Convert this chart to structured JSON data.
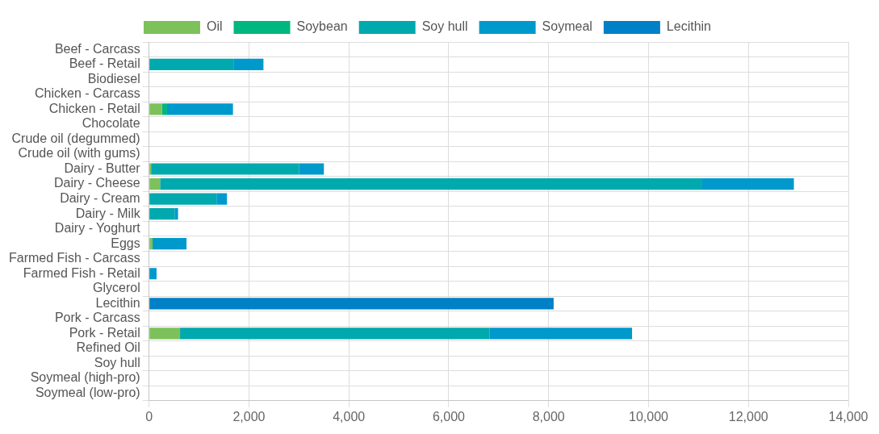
{
  "chart_data": {
    "type": "bar",
    "orientation": "horizontal",
    "stacked": true,
    "legend": "top",
    "grid": true,
    "categories": [
      "Beef - Carcass",
      "Beef - Retail",
      "Biodiesel",
      "Chicken - Carcass",
      "Chicken - Retail",
      "Chocolate",
      "Crude oil (degummed)",
      "Crude oil (with gums)",
      "Dairy - Butter",
      "Dairy - Cheese",
      "Dairy - Cream",
      "Dairy - Milk",
      "Dairy - Yoghurt",
      "Eggs",
      "Farmed Fish - Carcass",
      "Farmed Fish - Retail",
      "Glycerol",
      "Lecithin",
      "Pork - Carcass",
      "Pork - Retail",
      "Refined Oil",
      "Soy hull",
      "Soymeal (high-pro)",
      "Soymeal (low-pro)"
    ],
    "xlim": [
      0,
      14000
    ],
    "xticks": [
      {
        "value": 0,
        "label": "0"
      },
      {
        "value": 2000,
        "label": "2,000"
      },
      {
        "value": 4000,
        "label": "4,000"
      },
      {
        "value": 6000,
        "label": "6,000"
      },
      {
        "value": 8000,
        "label": "8,000"
      },
      {
        "value": 10000,
        "label": "10,000"
      },
      {
        "value": 12000,
        "label": "12,000"
      },
      {
        "value": 14000,
        "label": "14,000"
      }
    ],
    "series": [
      {
        "name": "Oil",
        "color": "#7dc15a",
        "values": [
          null,
          null,
          null,
          null,
          260,
          null,
          null,
          null,
          40,
          220,
          null,
          null,
          null,
          70,
          null,
          null,
          null,
          null,
          null,
          620,
          null,
          null,
          null,
          null
        ]
      },
      {
        "name": "Soybean",
        "color": "#00b77f",
        "values": [
          null,
          null,
          null,
          null,
          100,
          null,
          null,
          null,
          null,
          null,
          null,
          null,
          null,
          null,
          null,
          null,
          null,
          null,
          null,
          null,
          null,
          null,
          null,
          null
        ]
      },
      {
        "name": "Soy hull",
        "color": "#00a9ad",
        "values": [
          null,
          1700,
          null,
          null,
          null,
          null,
          null,
          null,
          2960,
          10840,
          1350,
          510,
          null,
          null,
          null,
          null,
          null,
          null,
          null,
          6200,
          null,
          null,
          null,
          null
        ]
      },
      {
        "name": "Soymeal",
        "color": "#0099cc",
        "values": [
          null,
          590,
          null,
          null,
          1320,
          null,
          null,
          null,
          500,
          1850,
          210,
          70,
          null,
          680,
          null,
          150,
          null,
          null,
          null,
          2850,
          null,
          null,
          null,
          null
        ]
      },
      {
        "name": "Lecithin",
        "color": "#0080c6",
        "values": [
          null,
          null,
          null,
          null,
          null,
          null,
          null,
          null,
          null,
          null,
          null,
          null,
          null,
          null,
          null,
          null,
          null,
          8100,
          null,
          null,
          null,
          null,
          null,
          null
        ]
      }
    ]
  }
}
